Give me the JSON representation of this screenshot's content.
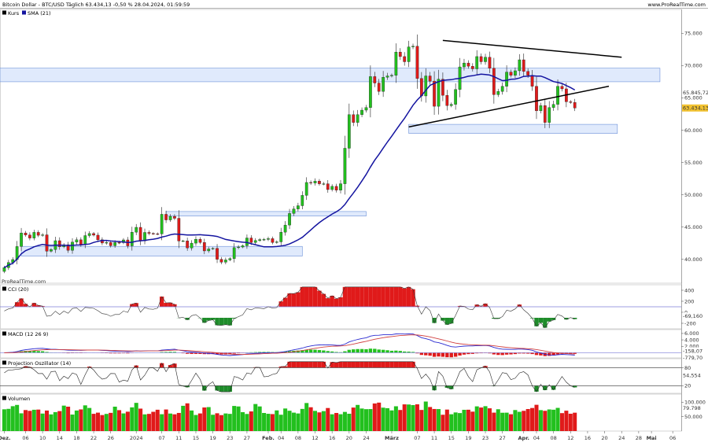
{
  "header": {
    "title": "Bitcoin Dollar - BTC/USD Täglich 63.434,13 -0,50 % 28.04.2024, 01:59:59",
    "source": "www.ProRealTime.com",
    "watermark": "ProRealTime.com"
  },
  "colors": {
    "up": "#22c01e",
    "down": "#e01a1a",
    "sma": "#1414a0",
    "zone_fill": "#dbe6fb",
    "zone_stroke": "#6b8fd8",
    "level": "#7b7bd8",
    "price_badge": "#f2c230"
  },
  "chart_data": [
    {
      "id": "price",
      "type": "candlestick",
      "legend": [
        {
          "label": "Kurs",
          "color": "#000000"
        },
        {
          "label": "SMA (21)",
          "color": "#1414a0"
        }
      ],
      "y_ticks": [
        "75.000",
        "70.000",
        "65.000",
        "60.000",
        "55.000",
        "50.000",
        "45.000",
        "40.000"
      ],
      "y_tick_values": [
        75000,
        70000,
        65000,
        60000,
        55000,
        50000,
        45000,
        40000
      ],
      "y_range": [
        36300,
        78700
      ],
      "x_range": [
        "2023-11-30",
        "2024-05-08"
      ],
      "x_labels": [
        {
          "label": "Dez.",
          "date": "2023-12-01"
        },
        {
          "label": "06",
          "date": "2023-12-06"
        },
        {
          "label": "10",
          "date": "2023-12-10"
        },
        {
          "label": "14",
          "date": "2023-12-14"
        },
        {
          "label": "18",
          "date": "2023-12-18"
        },
        {
          "label": "22",
          "date": "2023-12-22"
        },
        {
          "label": "26",
          "date": "2023-12-26"
        },
        {
          "label": "2024",
          "date": "2024-01-01"
        },
        {
          "label": "07",
          "date": "2024-01-07"
        },
        {
          "label": "11",
          "date": "2024-01-11"
        },
        {
          "label": "15",
          "date": "2024-01-15"
        },
        {
          "label": "19",
          "date": "2024-01-19"
        },
        {
          "label": "23",
          "date": "2024-01-23"
        },
        {
          "label": "27",
          "date": "2024-01-27"
        },
        {
          "label": "Feb.",
          "date": "2024-02-01"
        },
        {
          "label": "04",
          "date": "2024-02-04"
        },
        {
          "label": "08",
          "date": "2024-02-08"
        },
        {
          "label": "12",
          "date": "2024-02-12"
        },
        {
          "label": "16",
          "date": "2024-02-16"
        },
        {
          "label": "20",
          "date": "2024-02-20"
        },
        {
          "label": "24",
          "date": "2024-02-24"
        },
        {
          "label": "März",
          "date": "2024-03-01"
        },
        {
          "label": "07",
          "date": "2024-03-07"
        },
        {
          "label": "11",
          "date": "2024-03-11"
        },
        {
          "label": "15",
          "date": "2024-03-15"
        },
        {
          "label": "19",
          "date": "2024-03-19"
        },
        {
          "label": "23",
          "date": "2024-03-23"
        },
        {
          "label": "27",
          "date": "2024-03-27"
        },
        {
          "label": "Apr.",
          "date": "2024-04-01"
        },
        {
          "label": "04",
          "date": "2024-04-04"
        },
        {
          "label": "08",
          "date": "2024-04-08"
        },
        {
          "label": "12",
          "date": "2024-04-12"
        },
        {
          "label": "16",
          "date": "2024-04-16"
        },
        {
          "label": "20",
          "date": "2024-04-20"
        },
        {
          "label": "24",
          "date": "2024-04-24"
        },
        {
          "label": "28",
          "date": "2024-04-28"
        },
        {
          "label": "Mai",
          "date": "2024-05-01"
        },
        {
          "label": "06",
          "date": "2024-05-06"
        }
      ],
      "start_date": "2023-12-01",
      "closes": [
        38700,
        39500,
        39960,
        41980,
        44080,
        43770,
        43290,
        44170,
        43720,
        43790,
        41250,
        41500,
        42880,
        41940,
        42260,
        41380,
        42660,
        43020,
        42270,
        43670,
        43990,
        43740,
        43020,
        42520,
        42600,
        42100,
        42600,
        42580,
        43000,
        42080,
        44200,
        44950,
        42850,
        44160,
        44000,
        43950,
        43930,
        46970,
        46100,
        46650,
        46350,
        42830,
        42850,
        41750,
        42500,
        43100,
        42600,
        41300,
        41600,
        41700,
        40000,
        39550,
        39900,
        40100,
        41800,
        41900,
        42100,
        43300,
        42600,
        42900,
        43050,
        43080,
        43200,
        42600,
        42700,
        44200,
        45300,
        47100,
        47800,
        48300,
        49900,
        51900,
        51800,
        52100,
        51700,
        51700,
        50800,
        51300,
        50700,
        51700,
        57200,
        62400,
        61200,
        62400,
        63100,
        63500,
        68300,
        67300,
        66000,
        68200,
        68400,
        68500,
        72100,
        71400,
        70600,
        72900,
        73000,
        68000,
        65300,
        68400,
        67600,
        63700,
        67900,
        65400,
        63800,
        64000,
        66300,
        69800,
        70400,
        69900,
        69500,
        71400,
        70600,
        71300,
        69600,
        65500,
        66000,
        66800,
        69000,
        68500,
        69200,
        70900,
        69100,
        68500,
        66800,
        63000,
        63800,
        61200,
        63500,
        64000,
        66800,
        66400,
        64400,
        64300,
        63430
      ],
      "sma21_visible": true,
      "sma_label": "65.845,72",
      "last_price_label": "63.434,13",
      "zones": [
        {
          "from": "2023-11-30",
          "to": "2024-05-03",
          "low": 67500,
          "high": 69600
        },
        {
          "from": "2023-12-05",
          "to": "2024-02-09",
          "low": 40500,
          "high": 42000
        },
        {
          "from": "2024-01-08",
          "to": "2024-02-24",
          "low": 46700,
          "high": 47400
        },
        {
          "from": "2024-03-05",
          "to": "2024-04-23",
          "low": 59500,
          "high": 60900
        }
      ],
      "trendlines": [
        {
          "from": {
            "date": "2024-03-13",
            "value": 73900
          },
          "to": {
            "date": "2024-04-24",
            "value": 71300
          }
        },
        {
          "from": {
            "date": "2024-03-05",
            "value": 60500
          },
          "to": {
            "date": "2024-04-21",
            "value": 66800
          }
        }
      ]
    },
    {
      "id": "cci",
      "type": "oscillator",
      "legend": "CCI (20)",
      "y_ticks": [
        "400",
        "200",
        "0",
        "-200"
      ],
      "y_tick_values": [
        400,
        200,
        0,
        -200
      ],
      "y_range": [
        -300,
        500
      ],
      "level_line": 100,
      "value_label": "-69,160"
    },
    {
      "id": "macd",
      "type": "macd",
      "legend": "MACD (12 26 9)",
      "y_ticks": [
        "6.000",
        "4.000",
        "2.000"
      ],
      "y_tick_values": [
        6000,
        4000,
        2000
      ],
      "y_range": [
        -1600,
        7200
      ],
      "value_labels": [
        "-158,07",
        "-779,70"
      ]
    },
    {
      "id": "projection",
      "type": "oscillator",
      "legend": "Projection Oszillator (14)",
      "y_ticks": [
        "80",
        "20"
      ],
      "y_tick_values": [
        80,
        20
      ],
      "y_range": [
        -5,
        110
      ],
      "levels": [
        80,
        20
      ],
      "value_label": "54,554"
    },
    {
      "id": "volume",
      "type": "bar",
      "legend": "Volumen",
      "y_ticks": [
        "100.000",
        "50.000"
      ],
      "y_tick_values": [
        100000,
        50000
      ],
      "y_range": [
        0,
        128000
      ],
      "value_label": "79.798"
    }
  ]
}
